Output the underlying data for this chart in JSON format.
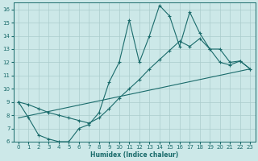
{
  "xlabel": "Humidex (Indice chaleur)",
  "bg_color": "#cce8e8",
  "grid_color": "#aacccc",
  "line_color": "#1a6b6b",
  "xlim": [
    -0.5,
    23.5
  ],
  "ylim": [
    6,
    16.5
  ],
  "xticks": [
    0,
    1,
    2,
    3,
    4,
    5,
    6,
    7,
    8,
    9,
    10,
    11,
    12,
    13,
    14,
    15,
    16,
    17,
    18,
    19,
    20,
    21,
    22,
    23
  ],
  "yticks": [
    6,
    7,
    8,
    9,
    10,
    11,
    12,
    13,
    14,
    15,
    16
  ],
  "line1_x": [
    0,
    1,
    2,
    3,
    4,
    5,
    6,
    7,
    8,
    9,
    10,
    11,
    12,
    13,
    14,
    15,
    16,
    17,
    18,
    19,
    20,
    21,
    22,
    23
  ],
  "line1_y": [
    9.0,
    7.8,
    6.5,
    6.2,
    6.0,
    6.0,
    7.0,
    7.3,
    8.2,
    10.5,
    12.0,
    15.2,
    12.0,
    14.0,
    16.3,
    15.5,
    13.2,
    15.8,
    14.2,
    13.0,
    12.0,
    11.8,
    12.1,
    11.5
  ],
  "line2_x": [
    0,
    1,
    2,
    3,
    4,
    5,
    6,
    7,
    8,
    9,
    10,
    11,
    12,
    13,
    14,
    15,
    16,
    17,
    18,
    19,
    20,
    21,
    22,
    23
  ],
  "line2_y": [
    9.0,
    8.8,
    8.5,
    8.2,
    8.0,
    7.8,
    7.6,
    7.4,
    7.8,
    8.5,
    9.3,
    10.0,
    10.7,
    11.5,
    12.2,
    12.9,
    13.6,
    13.2,
    13.8,
    13.0,
    13.0,
    12.0,
    12.1,
    11.5
  ],
  "line3_x": [
    0,
    23
  ],
  "line3_y": [
    7.8,
    11.5
  ]
}
